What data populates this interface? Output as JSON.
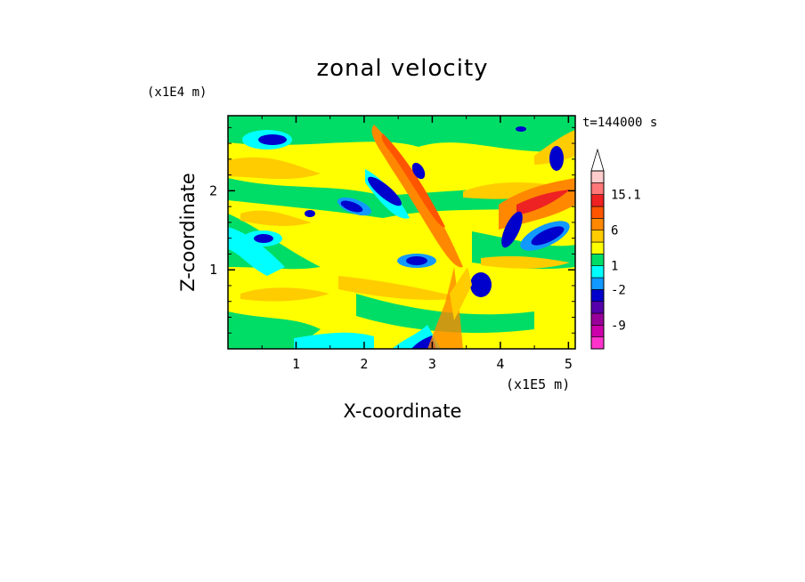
{
  "chart_data": {
    "type": "heatmap",
    "title": "zonal velocity",
    "xlabel": "X-coordinate",
    "ylabel": "Z-coordinate",
    "x_scale_label": "(x1E5 m)",
    "y_scale_label": "(x1E4 m)",
    "time_label": "t=144000 s",
    "xlim": [
      0,
      5.1
    ],
    "ylim": [
      0,
      2.95
    ],
    "x_ticks": [
      1,
      2,
      3,
      4,
      5
    ],
    "x_tick_labels": [
      "1",
      "2",
      "3",
      "4",
      "5"
    ],
    "y_ticks": [
      1,
      2
    ],
    "y_tick_labels": [
      "1",
      "2"
    ],
    "colorbar": {
      "levels": [
        "-15.1",
        "-12",
        "-9",
        "-6",
        "-4",
        "-2",
        "-1",
        "1",
        "2",
        "4",
        "6",
        "9",
        "12",
        "15.1"
      ],
      "labeled": [
        "15.1",
        "6",
        "1",
        "-2",
        "-9"
      ],
      "colors": [
        "#ff33cc",
        "#cc00aa",
        "#990099",
        "#5500aa",
        "#0000cc",
        "#1199ff",
        "#00ffff",
        "#00dd66",
        "#ffff00",
        "#ffcc00",
        "#ff8800",
        "#ff5500",
        "#ee2222",
        "#ff7777",
        "#ffcccc"
      ],
      "extend_max": true
    },
    "field_description": "2-D contour of zonal velocity; tilted wave packets centred near x=3-4 (x1E5 m), banded layers aloft"
  }
}
